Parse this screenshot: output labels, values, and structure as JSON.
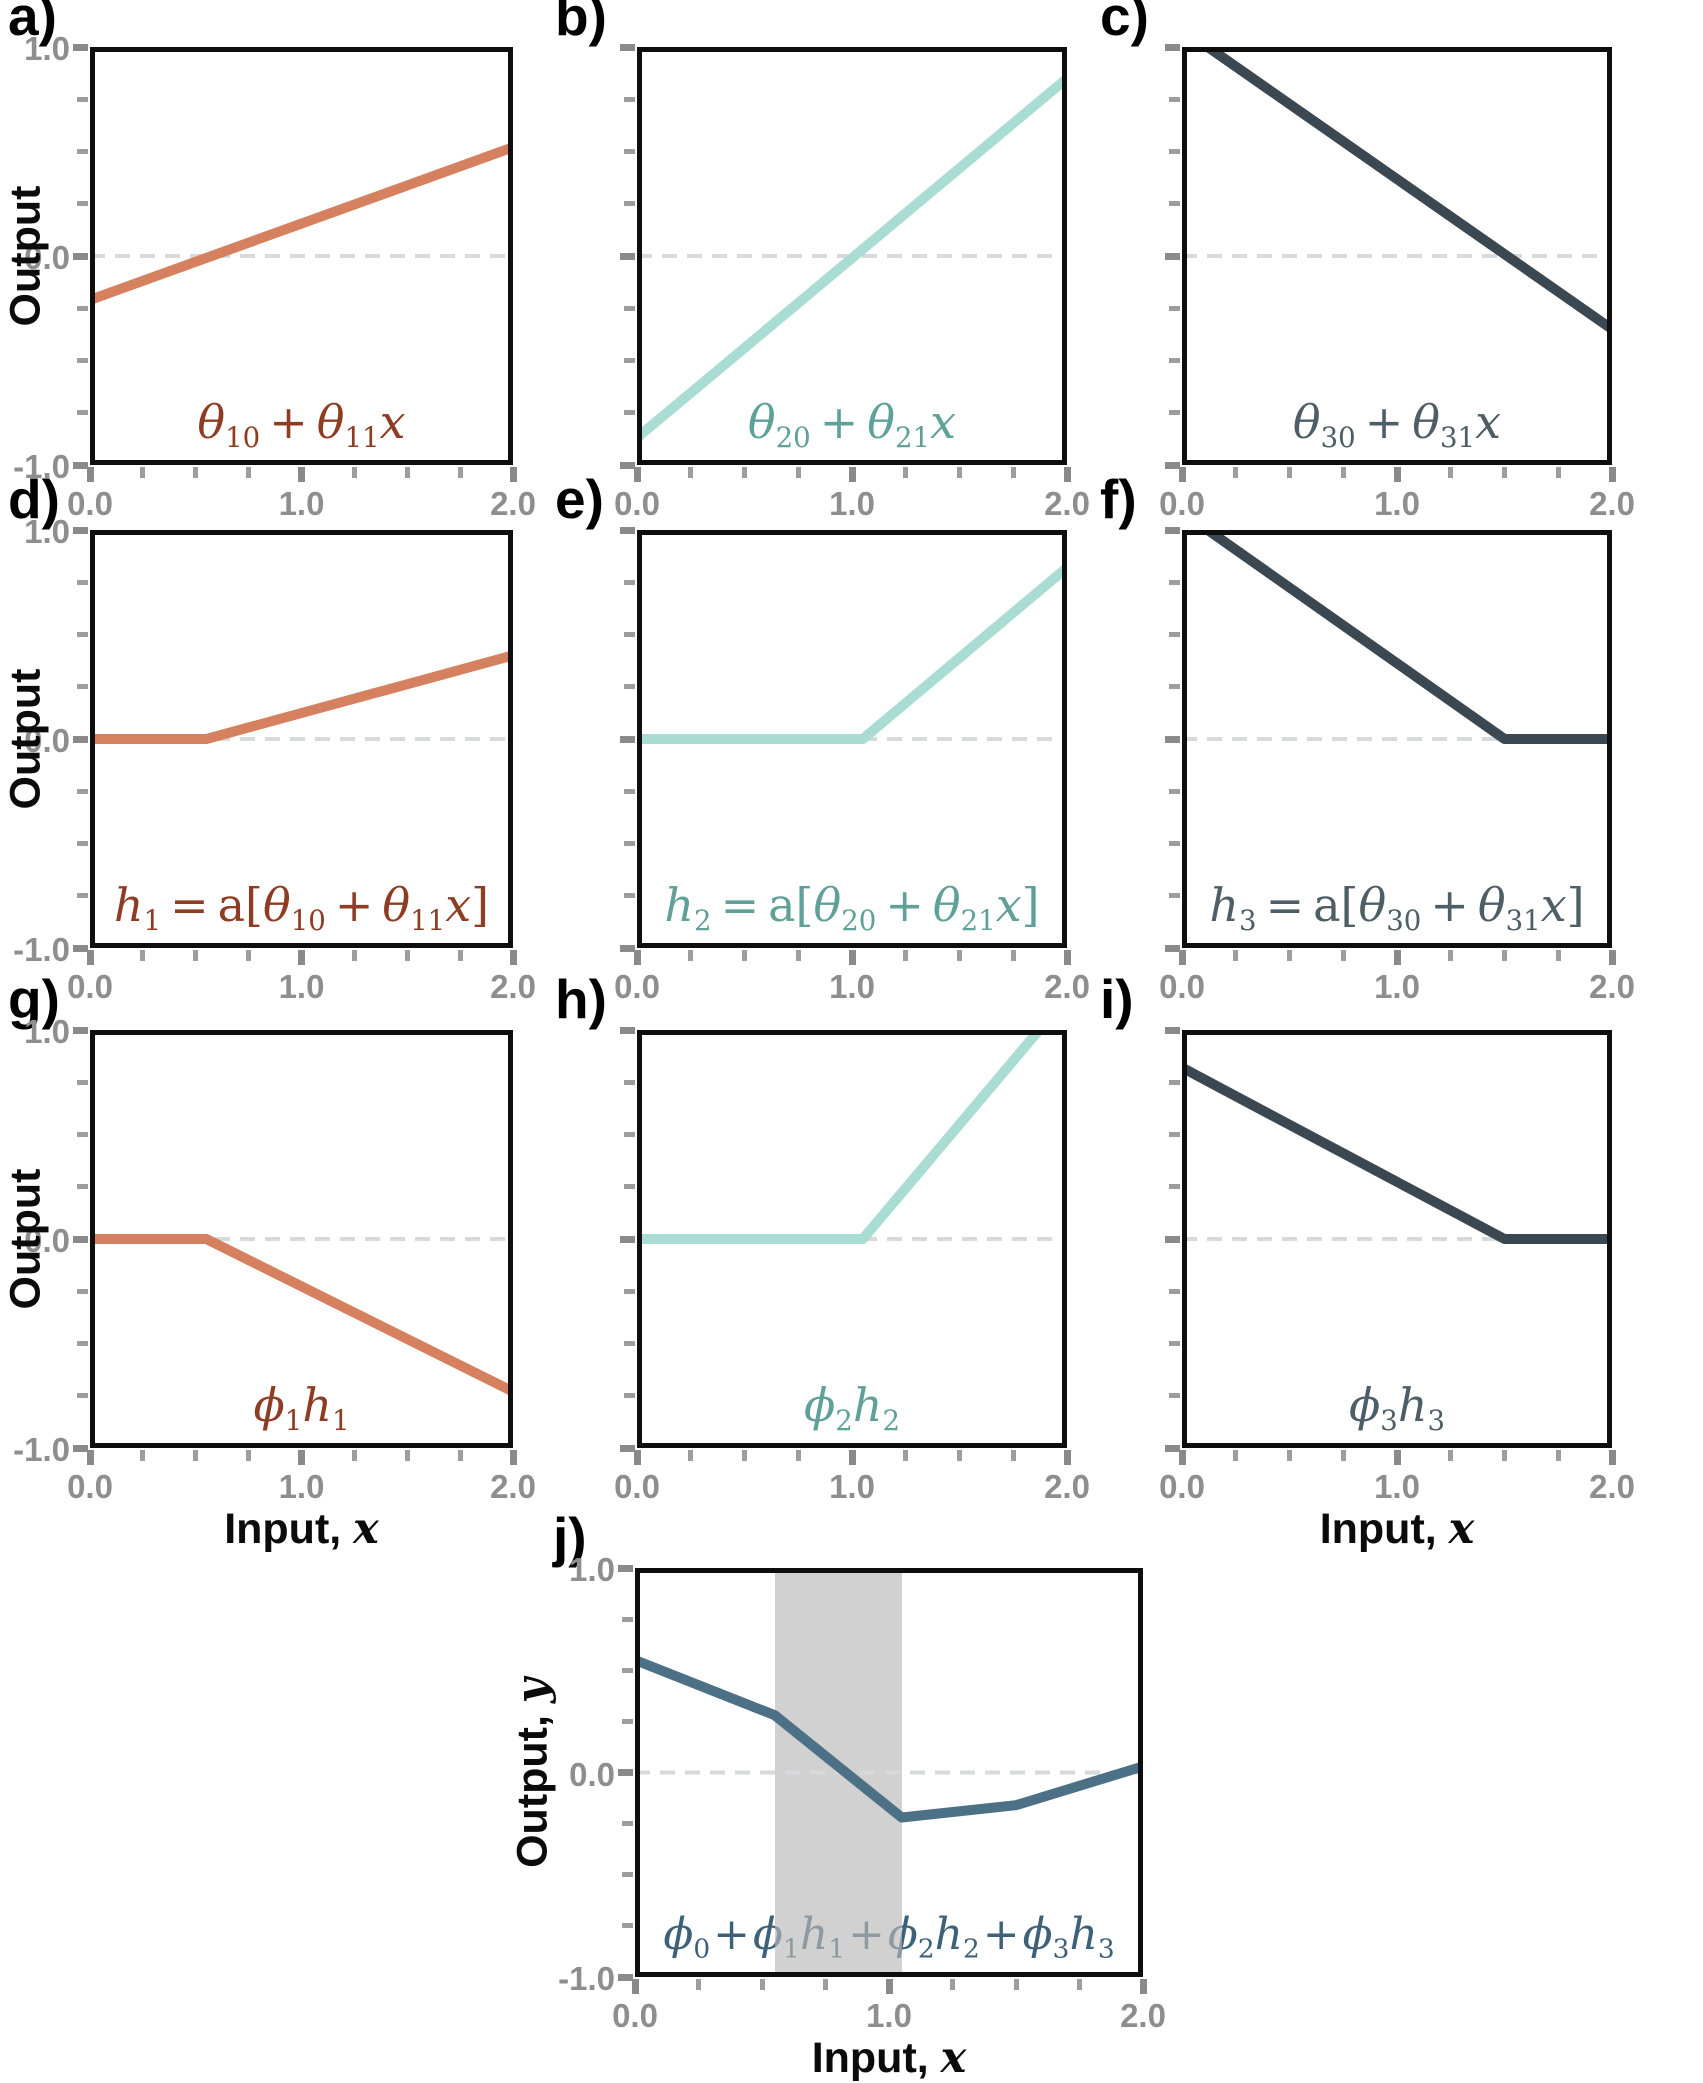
{
  "colors": {
    "orange_line": "#D5815F",
    "orange_label": "#8E3C22",
    "teal_line": "#A9DCD2",
    "teal_label": "#5FA099",
    "dark_line": "#3B4851",
    "dark_label": "#4D5E66",
    "blue_line": "#4C7086",
    "blue_label": "#3E617A",
    "box_border": "#0e0e0e",
    "tick_mark_minor": "#9d9d9d",
    "tick_mark_major": "#8a8a8a",
    "tick_label": "#8e8e8e",
    "zero_dash_line": "#D6DADA",
    "shaded_band": "rgba(185,185,185,0.65)"
  },
  "axis": {
    "x_tick_labels": [
      "0.0",
      "1.0",
      "2.0"
    ],
    "y_tick_labels": [
      "1.0",
      "0.0",
      "-1.0"
    ],
    "xlabel_main": "Input, ",
    "xlabel_var": "x",
    "ylabel_main": "Output",
    "ylabel_j_main": "Output, ",
    "ylabel_j_var": "y",
    "tick_step": 0.25
  },
  "chart_data": [
    {
      "id": "a",
      "panel_label": "a)",
      "type": "line",
      "xlim": [
        0,
        2
      ],
      "ylim": [
        -1,
        1
      ],
      "grid": false,
      "zero_dash": true,
      "line_color": "#D5815F",
      "label_color": "#8E3C22",
      "label_text": "theta_10 + theta_11 x",
      "formula": [
        {
          "g": "θ",
          "s": "10"
        },
        {
          "g": "+",
          "up": 1,
          "sp": 1
        },
        {
          "g": "θ",
          "s": "11"
        },
        {
          "g": "x"
        }
      ],
      "points": [
        [
          0,
          -0.21
        ],
        [
          2,
          0.52
        ]
      ],
      "y_tick_labels": true,
      "ylabel": "Output",
      "ylabel_offset": -64,
      "xlabel": false,
      "band": null
    },
    {
      "id": "b",
      "panel_label": "b)",
      "type": "line",
      "xlim": [
        0,
        2
      ],
      "ylim": [
        -1,
        1
      ],
      "grid": false,
      "zero_dash": true,
      "line_color": "#A9DCD2",
      "label_color": "#5FA099",
      "label_text": "theta_20 + theta_21 x",
      "formula": [
        {
          "g": "θ",
          "s": "20"
        },
        {
          "g": "+",
          "up": 1,
          "sp": 1
        },
        {
          "g": "θ",
          "s": "21"
        },
        {
          "g": "x"
        }
      ],
      "points": [
        [
          0,
          -0.87
        ],
        [
          2,
          0.85
        ]
      ],
      "y_tick_labels": false,
      "ylabel": null,
      "ylabel_offset": 0,
      "xlabel": false,
      "band": null
    },
    {
      "id": "c",
      "panel_label": "c)",
      "type": "line",
      "xlim": [
        0,
        2
      ],
      "ylim": [
        -1,
        1
      ],
      "grid": false,
      "zero_dash": true,
      "line_color": "#3B4851",
      "label_color": "#4D5E66",
      "label_text": "theta_30 + theta_31 x",
      "formula": [
        {
          "g": "θ",
          "s": "30"
        },
        {
          "g": "+",
          "up": 1,
          "sp": 1
        },
        {
          "g": "θ",
          "s": "31"
        },
        {
          "g": "x"
        }
      ],
      "points": [
        [
          0.12,
          1.0
        ],
        [
          2,
          -0.35
        ]
      ],
      "y_tick_labels": false,
      "ylabel": null,
      "ylabel_offset": 0,
      "xlabel": false,
      "band": null
    },
    {
      "id": "d",
      "panel_label": "d)",
      "type": "line",
      "xlim": [
        0,
        2
      ],
      "ylim": [
        -1,
        1
      ],
      "grid": false,
      "zero_dash": true,
      "line_color": "#D5815F",
      "label_color": "#8E3C22",
      "label_text": "h_1 = a[theta_10 + theta_11 x]",
      "formula": [
        {
          "g": "h",
          "s": "1"
        },
        {
          "g": "=",
          "up": 1,
          "sp": 1
        },
        {
          "g": "a[",
          "up": 1
        },
        {
          "g": "θ",
          "s": "10"
        },
        {
          "g": "+",
          "up": 1,
          "sp": 1
        },
        {
          "g": "θ",
          "s": "11"
        },
        {
          "g": "x"
        },
        {
          "g": "]",
          "up": 1
        }
      ],
      "points": [
        [
          0,
          0
        ],
        [
          0.55,
          0
        ],
        [
          2,
          0.4
        ]
      ],
      "y_tick_labels": true,
      "ylabel": "Output",
      "ylabel_offset": -64,
      "xlabel": false,
      "band": null
    },
    {
      "id": "e",
      "panel_label": "e)",
      "type": "line",
      "xlim": [
        0,
        2
      ],
      "ylim": [
        -1,
        1
      ],
      "grid": false,
      "zero_dash": true,
      "line_color": "#A9DCD2",
      "label_color": "#5FA099",
      "label_text": "h_2 = a[theta_20 + theta_21 x]",
      "formula": [
        {
          "g": "h",
          "s": "2"
        },
        {
          "g": "=",
          "up": 1,
          "sp": 1
        },
        {
          "g": "a[",
          "up": 1
        },
        {
          "g": "θ",
          "s": "20"
        },
        {
          "g": "+",
          "up": 1,
          "sp": 1
        },
        {
          "g": "θ",
          "s": "21"
        },
        {
          "g": "x"
        },
        {
          "g": "]",
          "up": 1
        }
      ],
      "points": [
        [
          0,
          0
        ],
        [
          1.05,
          0
        ],
        [
          2,
          0.82
        ]
      ],
      "y_tick_labels": false,
      "ylabel": null,
      "ylabel_offset": 0,
      "xlabel": false,
      "band": null
    },
    {
      "id": "f",
      "panel_label": "f)",
      "type": "line",
      "xlim": [
        0,
        2
      ],
      "ylim": [
        -1,
        1
      ],
      "grid": false,
      "zero_dash": true,
      "line_color": "#3B4851",
      "label_color": "#4D5E66",
      "label_text": "h_3 = a[theta_30 + theta_31 x]",
      "formula": [
        {
          "g": "h",
          "s": "3"
        },
        {
          "g": "=",
          "up": 1,
          "sp": 1
        },
        {
          "g": "a[",
          "up": 1
        },
        {
          "g": "θ",
          "s": "30"
        },
        {
          "g": "+",
          "up": 1,
          "sp": 1
        },
        {
          "g": "θ",
          "s": "31"
        },
        {
          "g": "x"
        },
        {
          "g": "]",
          "up": 1
        }
      ],
      "points": [
        [
          0.12,
          1.0
        ],
        [
          1.5,
          0
        ],
        [
          2,
          0
        ]
      ],
      "y_tick_labels": false,
      "ylabel": null,
      "ylabel_offset": 0,
      "xlabel": false,
      "band": null
    },
    {
      "id": "g",
      "panel_label": "g)",
      "type": "line",
      "xlim": [
        0,
        2
      ],
      "ylim": [
        -1,
        1
      ],
      "grid": false,
      "zero_dash": true,
      "line_color": "#D5815F",
      "label_color": "#8E3C22",
      "label_text": "phi_1 h_1",
      "formula": [
        {
          "g": "ϕ",
          "s": "1"
        },
        {
          "g": "h",
          "s": "1"
        }
      ],
      "points": [
        [
          0,
          0
        ],
        [
          0.55,
          0
        ],
        [
          2,
          -0.73
        ]
      ],
      "y_tick_labels": true,
      "ylabel": "Output",
      "ylabel_offset": -64,
      "xlabel": true,
      "band": null
    },
    {
      "id": "h",
      "panel_label": "h)",
      "type": "line",
      "xlim": [
        0,
        2
      ],
      "ylim": [
        -1,
        1
      ],
      "grid": false,
      "zero_dash": true,
      "line_color": "#A9DCD2",
      "label_color": "#5FA099",
      "label_text": "phi_2 h_2",
      "formula": [
        {
          "g": "ϕ",
          "s": "2"
        },
        {
          "g": "h",
          "s": "2"
        }
      ],
      "points": [
        [
          0,
          0
        ],
        [
          1.05,
          0
        ],
        [
          1.87,
          1.0
        ]
      ],
      "y_tick_labels": false,
      "ylabel": null,
      "ylabel_offset": 0,
      "xlabel": false,
      "band": null
    },
    {
      "id": "i",
      "panel_label": "i)",
      "type": "line",
      "xlim": [
        0,
        2
      ],
      "ylim": [
        -1,
        1
      ],
      "grid": false,
      "zero_dash": true,
      "line_color": "#3B4851",
      "label_color": "#4D5E66",
      "label_text": "phi_3 h_3",
      "formula": [
        {
          "g": "ϕ",
          "s": "3"
        },
        {
          "g": "h",
          "s": "3"
        }
      ],
      "points": [
        [
          0,
          0.82
        ],
        [
          1.5,
          0
        ],
        [
          2,
          0
        ]
      ],
      "y_tick_labels": false,
      "ylabel": null,
      "ylabel_offset": 0,
      "xlabel": true,
      "band": null
    },
    {
      "id": "j",
      "panel_label": "j)",
      "type": "line",
      "xlim": [
        0,
        2
      ],
      "ylim": [
        -1,
        1
      ],
      "grid": false,
      "zero_dash": true,
      "line_color": "#4C7086",
      "label_color": "#3E617A",
      "label_text": "phi_0 + phi_1 h_1 + phi_2 h_2 + phi_3 h_3",
      "formula": [
        {
          "g": "ϕ",
          "s": "0"
        },
        {
          "g": "+",
          "up": 1,
          "sp2": 1
        },
        {
          "g": "ϕ",
          "s": "1"
        },
        {
          "g": "h",
          "s": "1"
        },
        {
          "g": "+",
          "up": 1,
          "sp2": 1
        },
        {
          "g": "ϕ",
          "s": "2"
        },
        {
          "g": "h",
          "s": "2"
        },
        {
          "g": "+",
          "up": 1,
          "sp2": 1
        },
        {
          "g": "ϕ",
          "s": "3"
        },
        {
          "g": "h",
          "s": "3"
        }
      ],
      "points": [
        [
          0,
          0.55
        ],
        [
          0.55,
          0.28
        ],
        [
          1.05,
          -0.22
        ],
        [
          1.5,
          -0.16
        ],
        [
          2,
          0.03
        ]
      ],
      "y_tick_labels": true,
      "ylabel": "Output, y",
      "ylabel_offset": -102,
      "xlabel": true,
      "band": [
        0.55,
        1.05
      ]
    }
  ]
}
